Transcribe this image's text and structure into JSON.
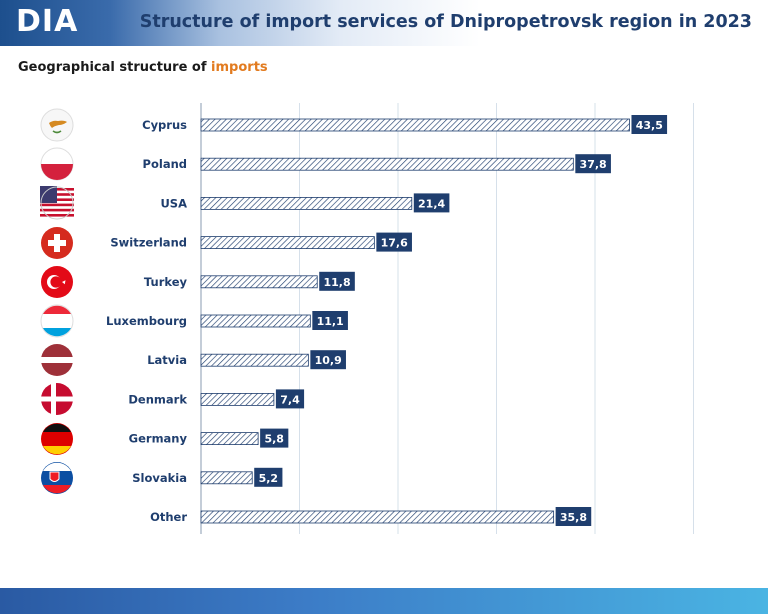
{
  "header": {
    "logo_text": "DIA",
    "title": "Structure of import services of Dnipropetrovsk region in 2023"
  },
  "subtitle": {
    "prefix": "Geographical  structure  of ",
    "accent": "imports"
  },
  "colors": {
    "title": "#1f3e6e",
    "accent": "#e27b1f",
    "label_box": "#1f3e6e",
    "bar_hatch": "#1f3e6e",
    "grid": "#d6e0ea"
  },
  "chart_data": {
    "type": "bar",
    "orientation": "horizontal",
    "categories": [
      "Cyprus",
      "Poland",
      "USA",
      "Switzerland",
      "Turkey",
      "Luxembourg",
      "Latvia",
      "Denmark",
      "Germany",
      "Slovakia",
      "Other"
    ],
    "values": [
      43.5,
      37.8,
      21.4,
      17.6,
      11.8,
      11.1,
      10.9,
      7.4,
      5.8,
      5.2,
      35.8
    ],
    "value_labels": [
      "43,5",
      "37,8",
      "21,4",
      "17,6",
      "11,8",
      "11,1",
      "10,9",
      "7,4",
      "5,8",
      "5,2",
      "35,8"
    ],
    "icons": [
      "cyprus-flag-icon",
      "poland-flag-icon",
      "usa-flag-icon",
      "switzerland-flag-icon",
      "turkey-flag-icon",
      "luxembourg-flag-icon",
      "latvia-flag-icon",
      "denmark-flag-icon",
      "germany-flag-icon",
      "slovakia-flag-icon"
    ],
    "xlim": [
      0,
      50
    ],
    "grid": true,
    "legend": "none",
    "title": "",
    "xlabel": "",
    "ylabel": ""
  }
}
